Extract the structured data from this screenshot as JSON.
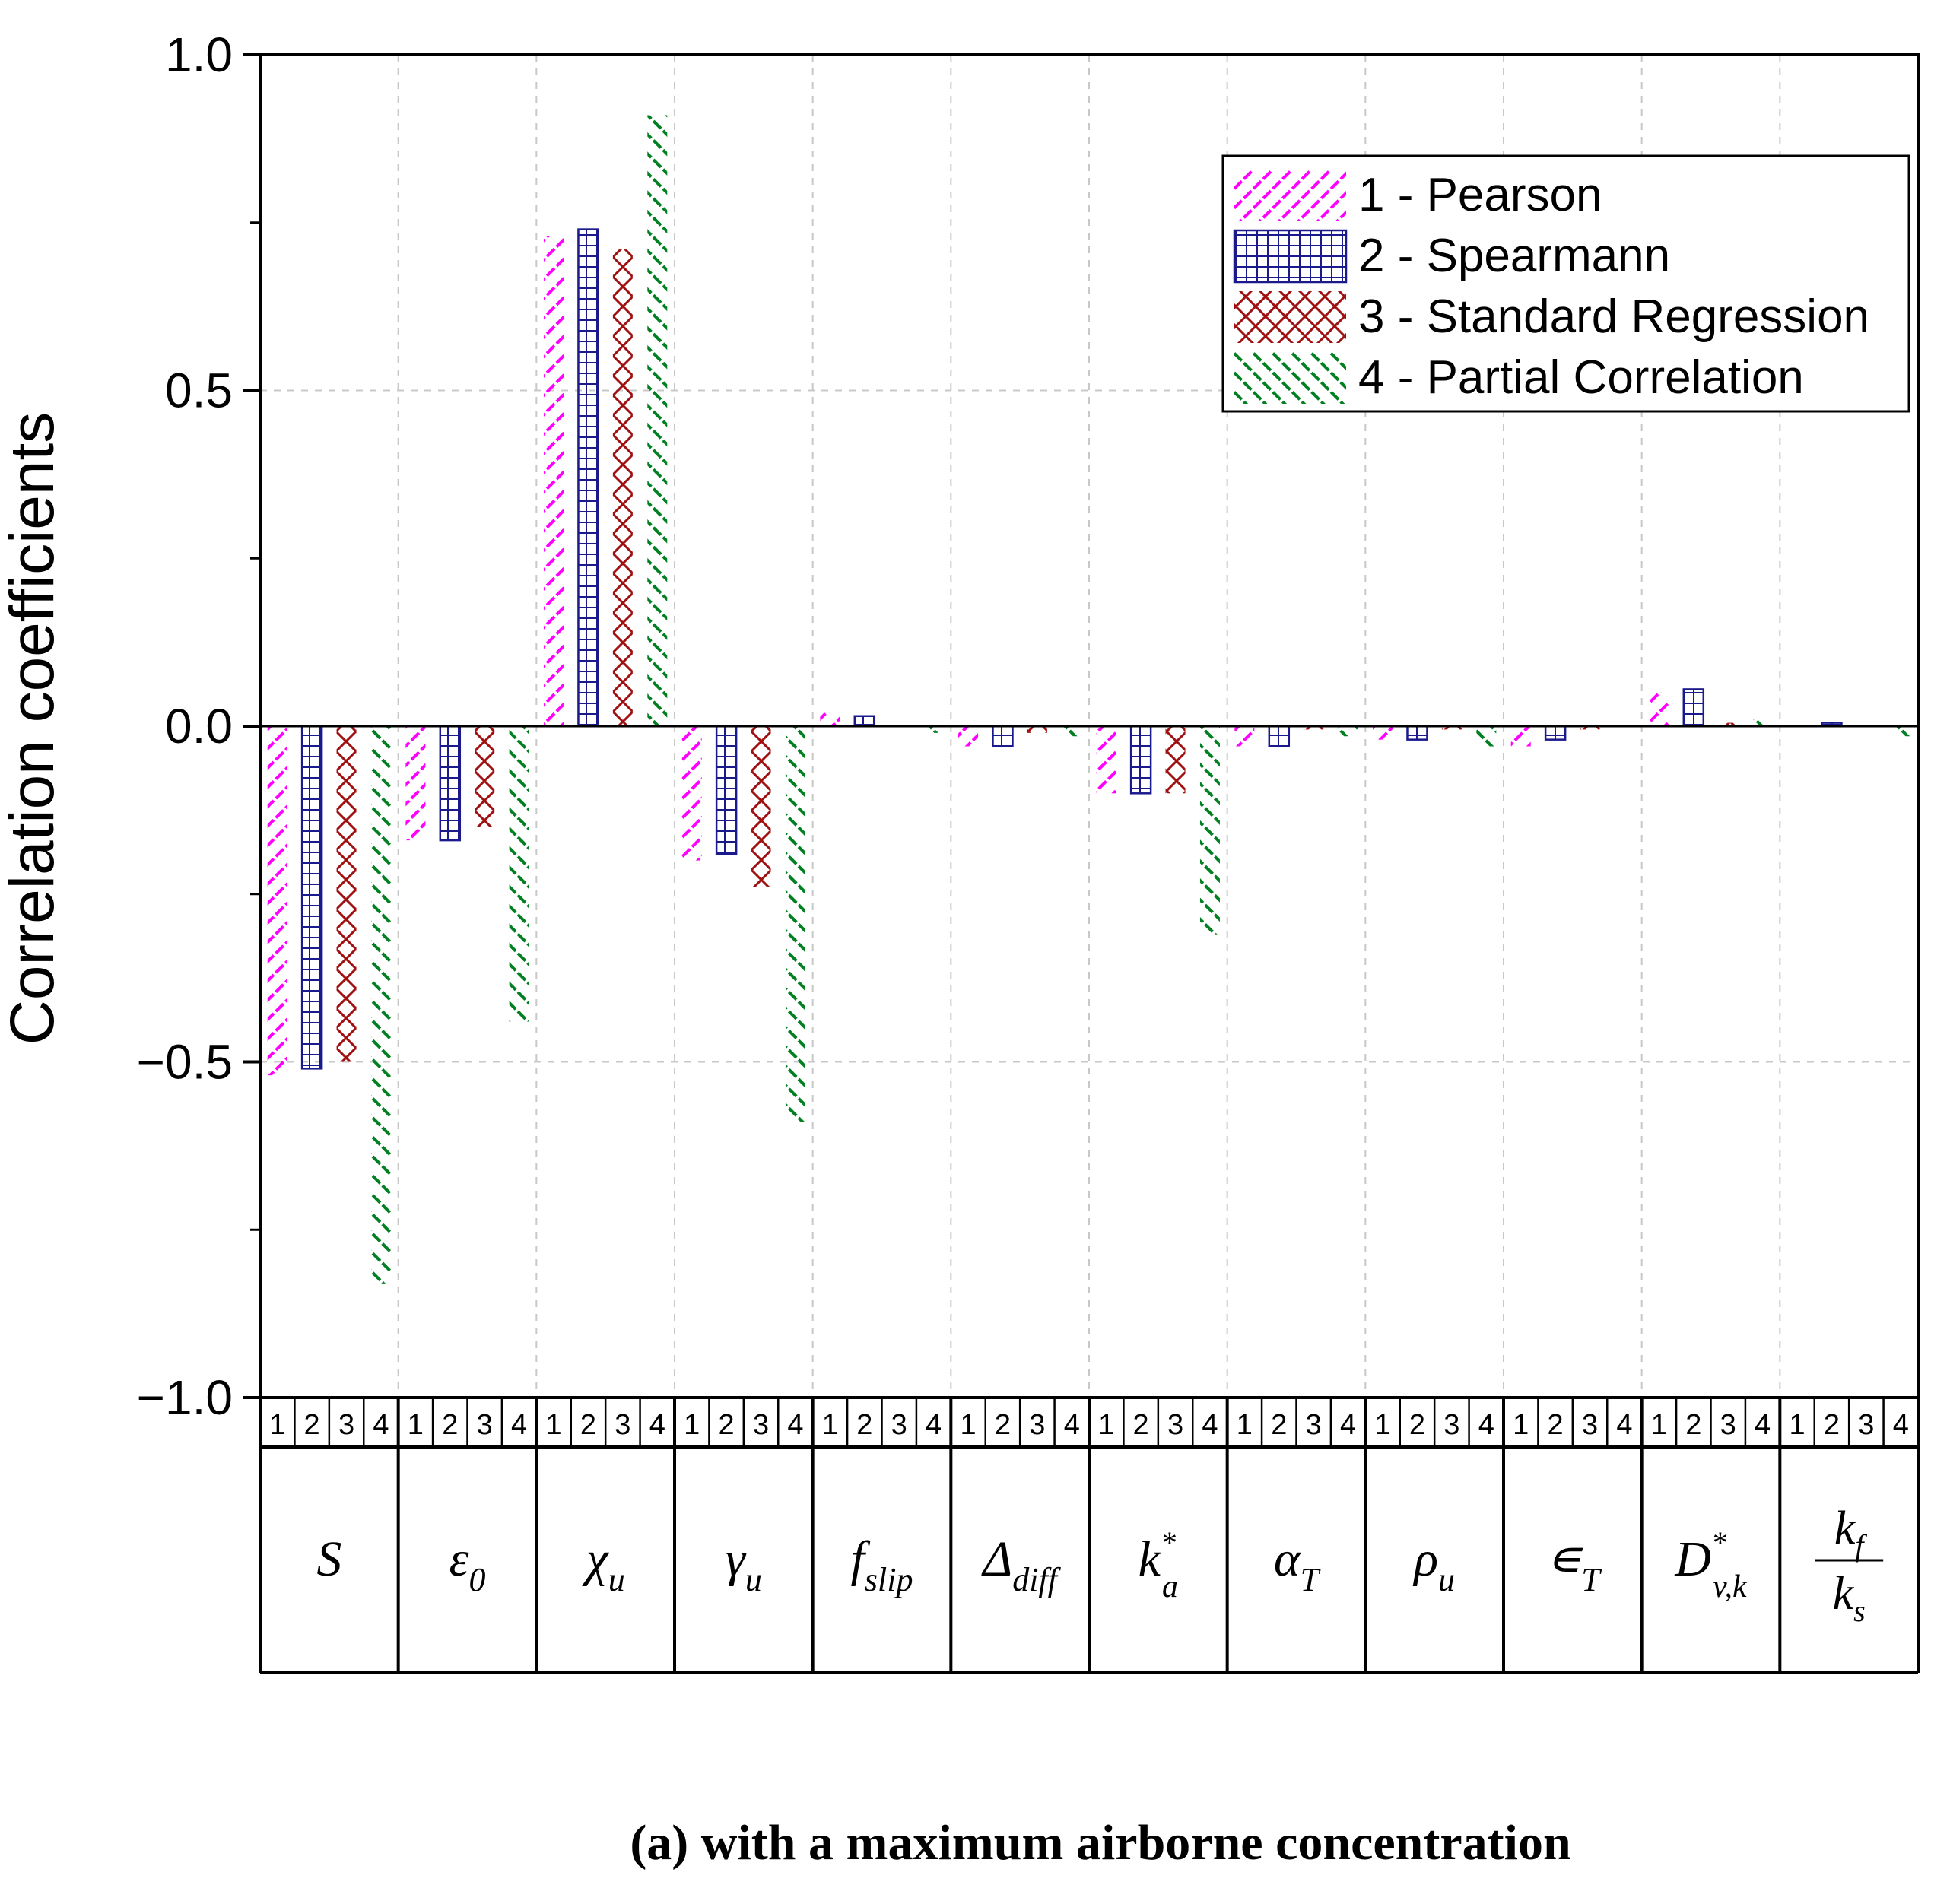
{
  "chart_data": {
    "type": "bar",
    "title": "",
    "caption": "(a) with a maximum airborne concentration",
    "ylabel": "Correlation coefficients",
    "xlabel": "",
    "ylim": [
      -1.0,
      1.0
    ],
    "yticks": [
      -1.0,
      -0.5,
      0.0,
      0.5,
      1.0
    ],
    "ytick_labels": [
      "−1.0",
      "−0.5",
      "0.0",
      "0.5",
      "1.0"
    ],
    "grid": true,
    "legend_position": "top-right",
    "sub_labels": [
      "1",
      "2",
      "3",
      "4"
    ],
    "categories": [
      {
        "main": "S"
      },
      {
        "main": "ε",
        "sub": "0"
      },
      {
        "main": "χ",
        "sub": "u"
      },
      {
        "main": "γ",
        "sub": "u"
      },
      {
        "main": "f",
        "sub": "slip"
      },
      {
        "main": "Δ",
        "sub": "diff"
      },
      {
        "main": "k",
        "sub": "a",
        "sup": "*"
      },
      {
        "main": "α",
        "sub": "T"
      },
      {
        "main": "ρ",
        "sub": "u"
      },
      {
        "main": "∊",
        "sub": "T"
      },
      {
        "main": "D",
        "sub": "v,k",
        "sup": "*"
      },
      {
        "num": "k",
        "num_sub": "f",
        "den": "k",
        "den_sub": "s"
      }
    ],
    "series": [
      {
        "name": "1 - Pearson",
        "pattern": "fwd-hatch",
        "color": "#ff00ff",
        "values": [
          -0.52,
          -0.17,
          0.73,
          -0.2,
          0.02,
          -0.03,
          -0.1,
          -0.03,
          -0.02,
          -0.03,
          0.05,
          0.0
        ]
      },
      {
        "name": "2 - Spearmann",
        "pattern": "grid",
        "color": "#1a1a8c",
        "values": [
          -0.51,
          -0.17,
          0.74,
          -0.19,
          0.015,
          -0.03,
          -0.1,
          -0.03,
          -0.02,
          -0.02,
          0.055,
          0.005
        ]
      },
      {
        "name": "3 - Standard Regression",
        "pattern": "cross-hatch",
        "color": "#a01010",
        "values": [
          -0.5,
          -0.15,
          0.71,
          -0.24,
          0.0,
          -0.01,
          -0.1,
          -0.005,
          -0.005,
          -0.005,
          0.005,
          0.0
        ]
      },
      {
        "name": "4 - Partial Correlation",
        "pattern": "back-hatch",
        "color": "#008020",
        "values": [
          -0.83,
          -0.44,
          0.91,
          -0.59,
          -0.01,
          -0.015,
          -0.31,
          -0.015,
          -0.03,
          0.0,
          0.01,
          -0.015
        ]
      }
    ]
  }
}
